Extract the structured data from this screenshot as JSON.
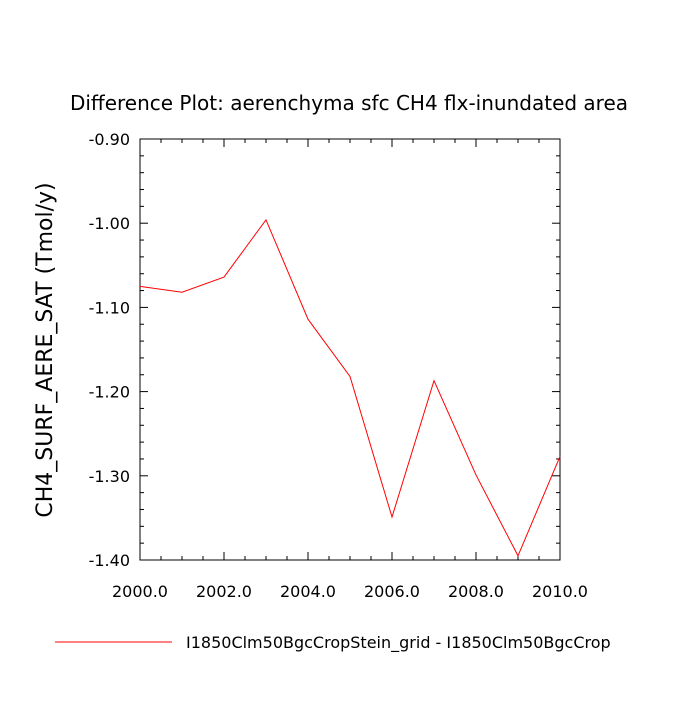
{
  "chart_data": {
    "type": "line",
    "title": "Difference Plot: aerenchyma sfc CH4 flx-inundated area",
    "xlabel": "",
    "ylabel": "CH4_SURF_AERE_SAT  (Tmol/y)",
    "xlim": [
      2000,
      2010
    ],
    "ylim": [
      -1.4,
      -0.9
    ],
    "x_ticks": [
      "2000.0",
      "2002.0",
      "2004.0",
      "2006.0",
      "2008.0",
      "2010.0"
    ],
    "y_ticks": [
      "-0.90",
      "-1.00",
      "-1.10",
      "-1.20",
      "-1.30",
      "-1.40"
    ],
    "grid": false,
    "legend_position": "bottom",
    "series": [
      {
        "name": "I1850Clm50BgcCropStein_grid - I1850Clm50BgcCrop",
        "color": "#ff0000",
        "x": [
          2000,
          2001,
          2002,
          2003,
          2004,
          2005,
          2006,
          2007,
          2008,
          2009,
          2010
        ],
        "y": [
          -1.075,
          -1.082,
          -1.064,
          -0.996,
          -1.114,
          -1.182,
          -1.349,
          -1.187,
          -1.299,
          -1.395,
          -1.277
        ]
      }
    ]
  }
}
